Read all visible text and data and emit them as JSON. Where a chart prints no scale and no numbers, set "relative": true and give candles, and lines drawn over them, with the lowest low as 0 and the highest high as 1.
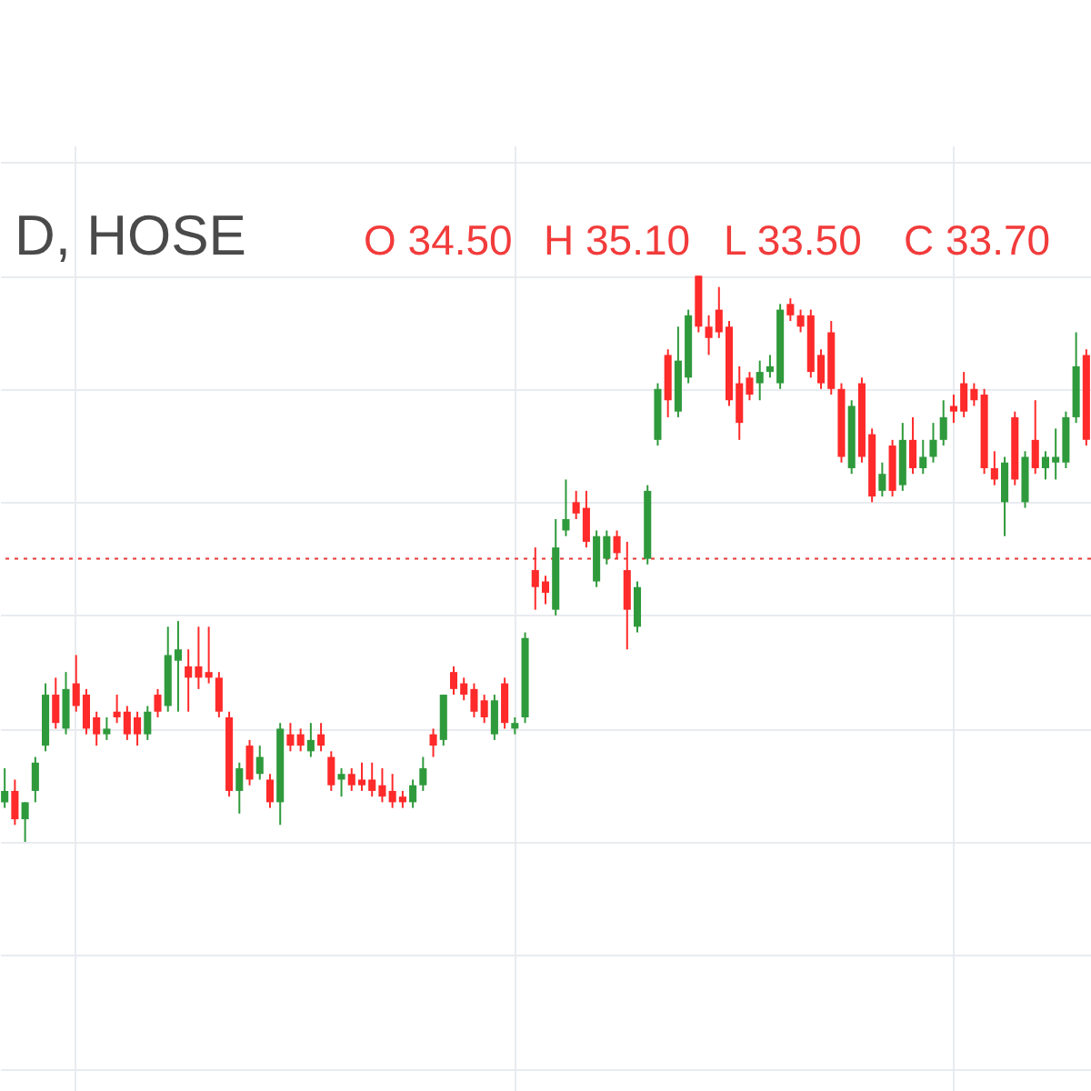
{
  "chart_data": {
    "type": "candlestick",
    "title": "D, HOSE",
    "annotations": [
      "O 34.50",
      "H 35.10",
      "L 33.50",
      "C 33.70"
    ],
    "relative": true,
    "grid": true,
    "tick_labels": false,
    "ref_lines": [
      {
        "axis": "y",
        "value": 0.5,
        "color": "#e53935",
        "line_style": "dotted"
      }
    ],
    "categories": [
      null,
      null,
      null,
      null,
      null,
      null,
      null,
      null,
      null,
      null,
      null,
      null,
      null,
      null,
      null,
      null,
      null,
      null,
      null,
      null,
      null,
      null,
      null,
      null,
      null,
      null,
      null,
      null,
      null,
      null,
      null,
      null,
      null,
      null,
      null,
      null,
      null,
      null,
      null,
      null,
      null,
      null,
      null,
      null,
      null,
      null,
      null,
      null,
      null,
      null,
      null,
      null,
      null,
      null,
      null,
      null,
      null,
      null,
      null,
      null,
      null,
      null,
      null,
      null,
      null,
      null,
      null,
      null,
      null,
      null,
      null,
      null,
      null,
      null,
      null,
      null,
      null,
      null,
      null,
      null,
      null,
      null,
      null,
      null,
      null,
      null,
      null,
      null,
      null,
      null,
      null,
      null,
      null,
      null,
      null,
      null,
      null,
      null,
      null,
      null,
      null,
      null,
      null,
      null,
      null,
      null,
      null
    ],
    "ohlc": [
      [
        0.07,
        0.13,
        0.06,
        0.09
      ],
      [
        0.09,
        0.11,
        0.03,
        0.04
      ],
      [
        0.04,
        0.07,
        0,
        0.07
      ],
      [
        0.09,
        0.15,
        0.07,
        0.14
      ],
      [
        0.17,
        0.28,
        0.16,
        0.26
      ],
      [
        0.26,
        0.29,
        0.2,
        0.21
      ],
      [
        0.2,
        0.3,
        0.19,
        0.27
      ],
      [
        0.28,
        0.33,
        0.23,
        0.24
      ],
      [
        0.26,
        0.27,
        0.19,
        0.2
      ],
      [
        0.22,
        0.23,
        0.17,
        0.19
      ],
      [
        0.19,
        0.22,
        0.18,
        0.2
      ],
      [
        0.23,
        0.26,
        0.21,
        0.22
      ],
      [
        0.23,
        0.24,
        0.18,
        0.19
      ],
      [
        0.22,
        0.23,
        0.17,
        0.19
      ],
      [
        0.19,
        0.24,
        0.18,
        0.23
      ],
      [
        0.26,
        0.27,
        0.22,
        0.23
      ],
      [
        0.24,
        0.38,
        0.23,
        0.33
      ],
      [
        0.32,
        0.39,
        0.23,
        0.34
      ],
      [
        0.31,
        0.34,
        0.23,
        0.29
      ],
      [
        0.31,
        0.38,
        0.27,
        0.29
      ],
      [
        0.3,
        0.38,
        0.28,
        0.29
      ],
      [
        0.29,
        0.3,
        0.22,
        0.23
      ],
      [
        0.22,
        0.23,
        0.08,
        0.09
      ],
      [
        0.09,
        0.14,
        0.05,
        0.13
      ],
      [
        0.17,
        0.18,
        0.1,
        0.11
      ],
      [
        0.12,
        0.17,
        0.11,
        0.15
      ],
      [
        0.11,
        0.12,
        0.06,
        0.07
      ],
      [
        0.07,
        0.21,
        0.03,
        0.2
      ],
      [
        0.19,
        0.21,
        0.16,
        0.17
      ],
      [
        0.19,
        0.2,
        0.16,
        0.17
      ],
      [
        0.16,
        0.21,
        0.15,
        0.18
      ],
      [
        0.19,
        0.21,
        0.16,
        0.17
      ],
      [
        0.15,
        0.16,
        0.09,
        0.1
      ],
      [
        0.11,
        0.13,
        0.08,
        0.12
      ],
      [
        0.12,
        0.13,
        0.09,
        0.1
      ],
      [
        0.11,
        0.14,
        0.09,
        0.1
      ],
      [
        0.11,
        0.14,
        0.08,
        0.09
      ],
      [
        0.1,
        0.13,
        0.07,
        0.08
      ],
      [
        0.09,
        0.12,
        0.06,
        0.07
      ],
      [
        0.08,
        0.09,
        0.06,
        0.07
      ],
      [
        0.07,
        0.11,
        0.06,
        0.1
      ],
      [
        0.1,
        0.15,
        0.09,
        0.13
      ],
      [
        0.19,
        0.2,
        0.15,
        0.17
      ],
      [
        0.18,
        0.26,
        0.17,
        0.26
      ],
      [
        0.3,
        0.31,
        0.26,
        0.27
      ],
      [
        0.28,
        0.29,
        0.25,
        0.26
      ],
      [
        0.27,
        0.28,
        0.22,
        0.23
      ],
      [
        0.25,
        0.26,
        0.21,
        0.22
      ],
      [
        0.19,
        0.26,
        0.18,
        0.25
      ],
      [
        0.28,
        0.29,
        0.2,
        0.21
      ],
      [
        0.2,
        0.22,
        0.19,
        0.21
      ],
      [
        0.22,
        0.37,
        0.21,
        0.36
      ],
      [
        0.48,
        0.52,
        0.41,
        0.45
      ],
      [
        0.46,
        0.47,
        0.42,
        0.44
      ],
      [
        0.41,
        0.57,
        0.4,
        0.52
      ],
      [
        0.55,
        0.64,
        0.54,
        0.57
      ],
      [
        0.6,
        0.62,
        0.57,
        0.58
      ],
      [
        0.59,
        0.62,
        0.52,
        0.53
      ],
      [
        0.46,
        0.55,
        0.45,
        0.54
      ],
      [
        0.5,
        0.55,
        0.49,
        0.54
      ],
      [
        0.54,
        0.55,
        0.5,
        0.51
      ],
      [
        0.48,
        0.53,
        0.34,
        0.41
      ],
      [
        0.38,
        0.46,
        0.37,
        0.45
      ],
      [
        0.5,
        0.63,
        0.49,
        0.62
      ],
      [
        0.71,
        0.81,
        0.7,
        0.8
      ],
      [
        0.86,
        0.87,
        0.75,
        0.78
      ],
      [
        0.76,
        0.91,
        0.75,
        0.85
      ],
      [
        0.82,
        0.94,
        0.81,
        0.93
      ],
      [
        1,
        1,
        0.9,
        0.91
      ],
      [
        0.91,
        0.93,
        0.86,
        0.89
      ],
      [
        0.94,
        0.98,
        0.89,
        0.9
      ],
      [
        0.91,
        0.92,
        0.77,
        0.78
      ],
      [
        0.81,
        0.84,
        0.71,
        0.74
      ],
      [
        0.82,
        0.83,
        0.78,
        0.79
      ],
      [
        0.81,
        0.85,
        0.78,
        0.83
      ],
      [
        0.83,
        0.86,
        0.82,
        0.84
      ],
      [
        0.81,
        0.95,
        0.8,
        0.94
      ],
      [
        0.95,
        0.96,
        0.92,
        0.93
      ],
      [
        0.93,
        0.94,
        0.9,
        0.91
      ],
      [
        0.93,
        0.94,
        0.82,
        0.83
      ],
      [
        0.86,
        0.87,
        0.8,
        0.81
      ],
      [
        0.9,
        0.92,
        0.79,
        0.8
      ],
      [
        0.8,
        0.81,
        0.67,
        0.68
      ],
      [
        0.66,
        0.78,
        0.65,
        0.77
      ],
      [
        0.81,
        0.82,
        0.67,
        0.68
      ],
      [
        0.72,
        0.73,
        0.6,
        0.61
      ],
      [
        0.62,
        0.67,
        0.61,
        0.65
      ],
      [
        0.7,
        0.71,
        0.61,
        0.62
      ],
      [
        0.63,
        0.74,
        0.62,
        0.71
      ],
      [
        0.71,
        0.75,
        0.65,
        0.66
      ],
      [
        0.66,
        0.71,
        0.65,
        0.68
      ],
      [
        0.68,
        0.74,
        0.67,
        0.71
      ],
      [
        0.71,
        0.78,
        0.7,
        0.75
      ],
      [
        0.77,
        0.79,
        0.74,
        0.76
      ],
      [
        0.81,
        0.83,
        0.75,
        0.76
      ],
      [
        0.8,
        0.81,
        0.77,
        0.78
      ],
      [
        0.79,
        0.8,
        0.65,
        0.66
      ],
      [
        0.66,
        0.69,
        0.63,
        0.64
      ],
      [
        0.6,
        0.68,
        0.54,
        0.67
      ],
      [
        0.75,
        0.76,
        0.63,
        0.64
      ],
      [
        0.6,
        0.69,
        0.59,
        0.68
      ],
      [
        0.71,
        0.78,
        0.65,
        0.66
      ],
      [
        0.66,
        0.69,
        0.64,
        0.68
      ],
      [
        0.67,
        0.73,
        0.64,
        0.68
      ],
      [
        0.67,
        0.76,
        0.66,
        0.75
      ],
      [
        0.75,
        0.9,
        0.74,
        0.84
      ],
      [
        0.86,
        0.87,
        0.7,
        0.71
      ]
    ],
    "colors": [
      "#2f9a3c",
      "#ff2a2a",
      "#2f9a3c",
      "#2f9a3c",
      "#2f9a3c",
      "#ff2a2a",
      "#2f9a3c",
      "#ff2a2a",
      "#ff2a2a",
      "#ff2a2a",
      "#2f9a3c",
      "#ff2a2a",
      "#ff2a2a",
      "#ff2a2a",
      "#2f9a3c",
      "#ff2a2a",
      "#2f9a3c",
      "#2f9a3c",
      "#ff2a2a",
      "#ff2a2a",
      "#ff2a2a",
      "#ff2a2a",
      "#ff2a2a",
      "#2f9a3c",
      "#ff2a2a",
      "#2f9a3c",
      "#ff2a2a",
      "#2f9a3c",
      "#ff2a2a",
      "#ff2a2a",
      "#2f9a3c",
      "#ff2a2a",
      "#ff2a2a",
      "#2f9a3c",
      "#ff2a2a",
      "#ff2a2a",
      "#ff2a2a",
      "#ff2a2a",
      "#ff2a2a",
      "#ff2a2a",
      "#2f9a3c",
      "#2f9a3c",
      "#ff2a2a",
      "#2f9a3c",
      "#ff2a2a",
      "#ff2a2a",
      "#ff2a2a",
      "#ff2a2a",
      "#2f9a3c",
      "#ff2a2a",
      "#2f9a3c",
      "#2f9a3c",
      "#ff2a2a",
      "#ff2a2a",
      "#2f9a3c",
      "#2f9a3c",
      "#ff2a2a",
      "#ff2a2a",
      "#2f9a3c",
      "#2f9a3c",
      "#ff2a2a",
      "#ff2a2a",
      "#2f9a3c",
      "#2f9a3c",
      "#2f9a3c",
      "#ff2a2a",
      "#2f9a3c",
      "#2f9a3c",
      "#ff2a2a",
      "#ff2a2a",
      "#ff2a2a",
      "#ff2a2a",
      "#ff2a2a",
      "#ff2a2a",
      "#2f9a3c",
      "#2f9a3c",
      "#2f9a3c",
      "#ff2a2a",
      "#ff2a2a",
      "#ff2a2a",
      "#ff2a2a",
      "#ff2a2a",
      "#ff2a2a",
      "#2f9a3c",
      "#ff2a2a",
      "#ff2a2a",
      "#2f9a3c",
      "#ff2a2a",
      "#2f9a3c",
      "#ff2a2a",
      "#2f9a3c",
      "#2f9a3c",
      "#2f9a3c",
      "#ff2a2a",
      "#ff2a2a",
      "#ff2a2a",
      "#ff2a2a",
      "#ff2a2a",
      "#2f9a3c",
      "#ff2a2a",
      "#2f9a3c",
      "#ff2a2a",
      "#2f9a3c",
      "#2f9a3c",
      "#2f9a3c",
      "#2f9a3c",
      "#ff2a2a"
    ]
  }
}
